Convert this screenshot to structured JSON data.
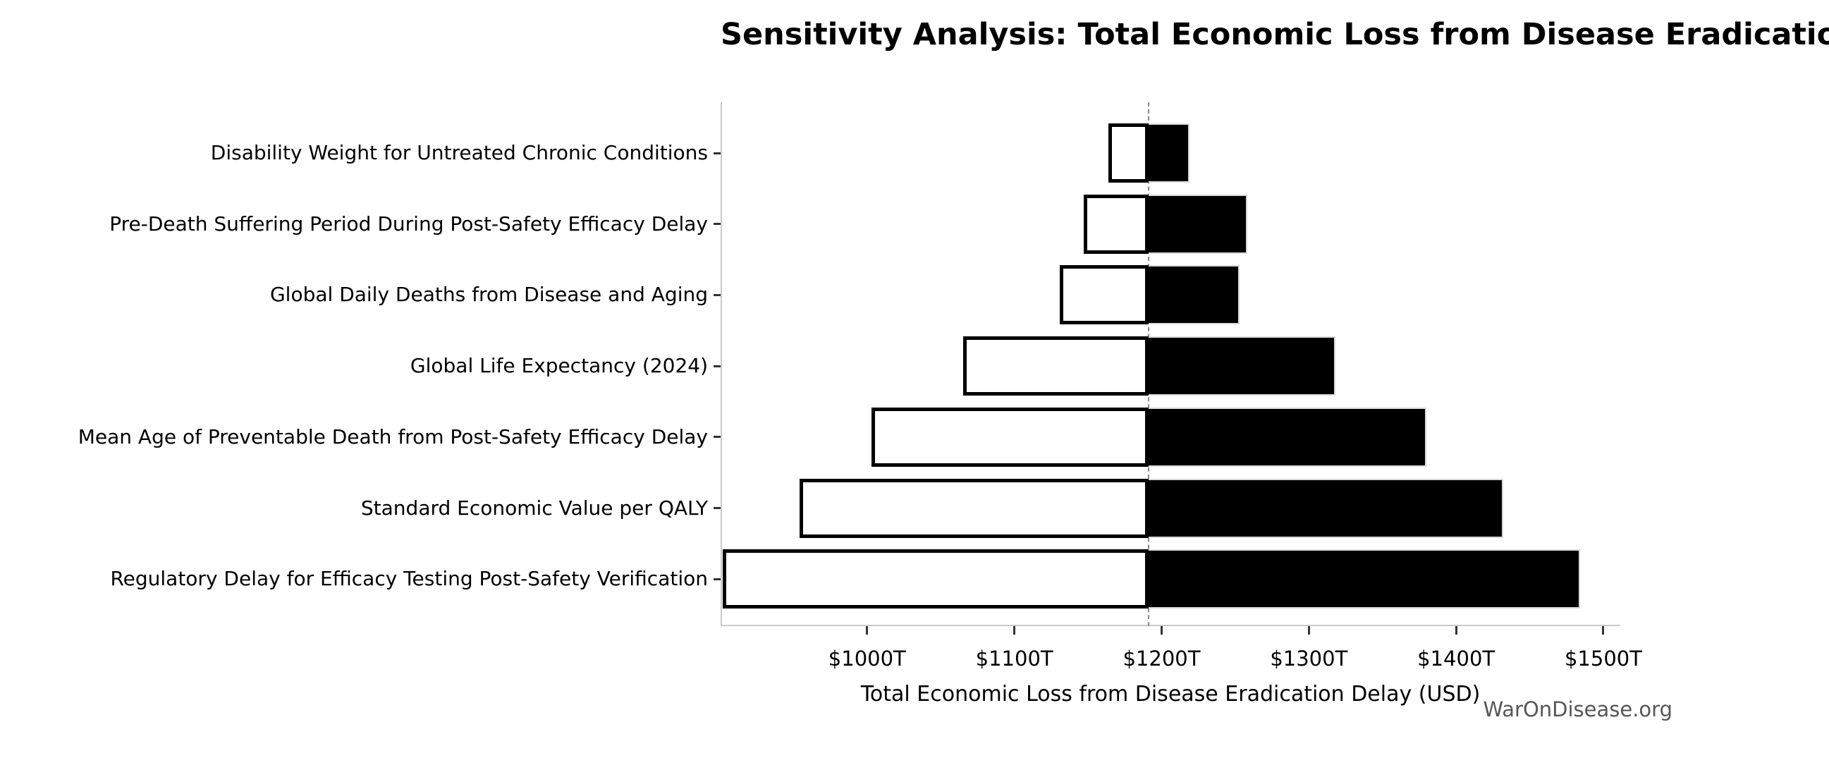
{
  "chart_data": {
    "type": "bar",
    "subtype": "tornado-sensitivity",
    "orientation": "horizontal",
    "title": "Sensitivity Analysis: Total Economic Loss from Disease Eradication Delay",
    "xlabel": "Total Economic Loss from Disease Eradication Delay (USD)",
    "watermark": "WarOnDisease.org",
    "unit": "trillion USD",
    "baseline": 1191,
    "xlim": [
      900.5,
      1511.5
    ],
    "grid": false,
    "legend": "none",
    "xticks": [
      {
        "value": 1000,
        "label": "$1000T"
      },
      {
        "value": 1100,
        "label": "$1100T"
      },
      {
        "value": 1200,
        "label": "$1200T"
      },
      {
        "value": 1300,
        "label": "$1300T"
      },
      {
        "value": 1400,
        "label": "$1400T"
      },
      {
        "value": 1500,
        "label": "$1500T"
      }
    ],
    "categories": [
      "Disability Weight for Untreated Chronic Conditions",
      "Pre-Death Suffering Period During Post-Safety Efficacy Delay",
      "Global Daily Deaths from Disease and Aging",
      "Global Life Expectancy (2024)",
      "Mean Age of Preventable Death from Post-Safety Efficacy Delay",
      "Standard Economic Value per QALY",
      "Regulatory Delay for Efficacy Testing Post-Safety Verification"
    ],
    "series": [
      {
        "name": "low-estimate",
        "role": "low",
        "fill": "#ffffff",
        "edge": "#000000",
        "values": [
          1164,
          1147,
          1131,
          1065,
          1003,
          954,
          902
        ]
      },
      {
        "name": "high-estimate",
        "role": "high",
        "fill": "#000000",
        "edge": "#d9d9d9",
        "values": [
          1219,
          1258,
          1253,
          1318,
          1380,
          1432,
          1484
        ]
      }
    ],
    "colors": {
      "spine": "#c8c8c8",
      "tick_mark": "#333333",
      "baseline_line": "#888888",
      "text": "#000000",
      "watermark": "#565656"
    }
  }
}
